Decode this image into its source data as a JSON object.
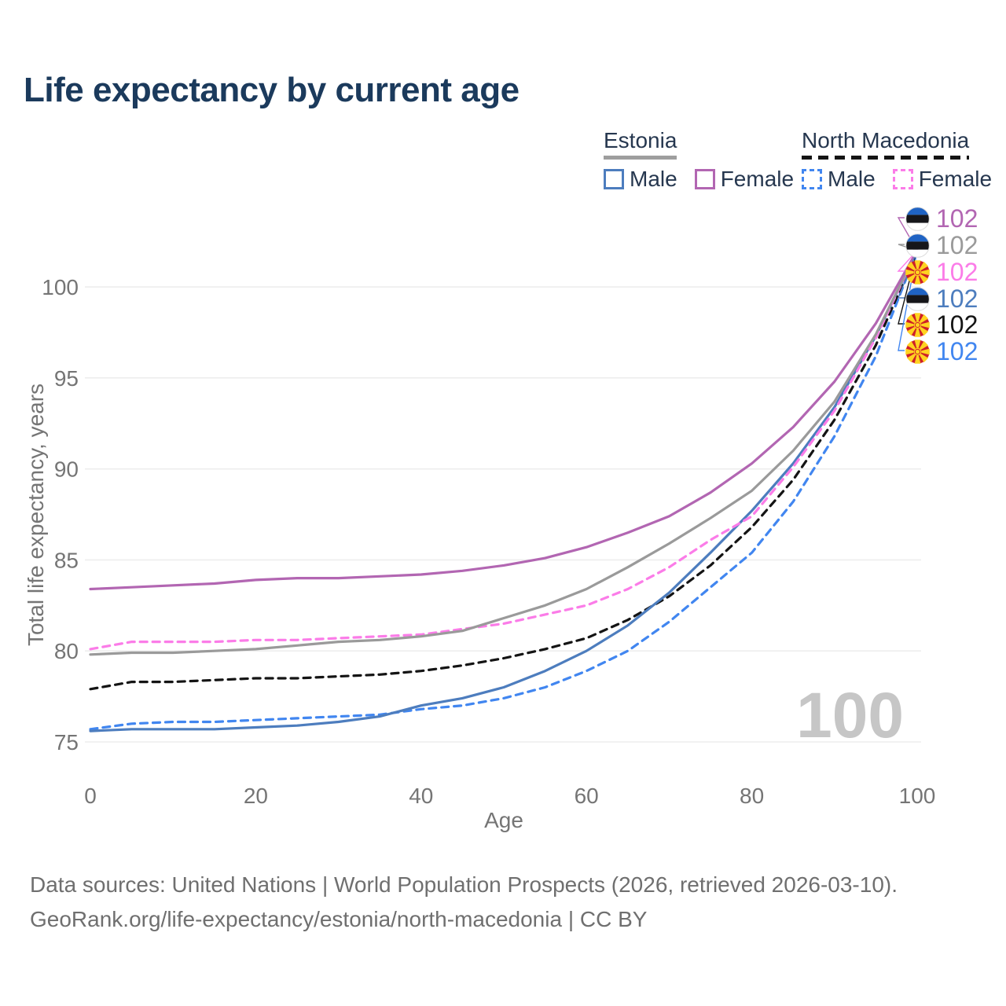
{
  "title": "Life expectancy by current age",
  "watermark": "100",
  "legend": {
    "groups": [
      {
        "label": "Estonia",
        "line_style": "solid",
        "underline_color": "#9e9e9e",
        "items": [
          {
            "label": "Male",
            "color": "#4d7dbe",
            "dash": false
          },
          {
            "label": "Female",
            "color": "#b266b2",
            "dash": false
          }
        ]
      },
      {
        "label": "North Macedonia",
        "line_style": "dashed",
        "underline_color": "#141414",
        "items": [
          {
            "label": "Male",
            "color": "#4186f0",
            "dash": true
          },
          {
            "label": "Female",
            "color": "#fb7ce8",
            "dash": true
          }
        ]
      }
    ]
  },
  "footer": {
    "line1": "Data sources: United Nations | World Population Prospects (2026, retrieved 2026-03-10).",
    "line2": "GeoRank.org/life-expectancy/estonia/north-macedonia | CC BY"
  },
  "chart_data": {
    "type": "line",
    "title": "Life expectancy by current age",
    "xlabel": "Age",
    "ylabel": "Total life expectancy, years",
    "xlim": [
      0,
      100
    ],
    "ylim": [
      74.5,
      103
    ],
    "x_ticks": [
      0,
      20,
      40,
      60,
      80,
      100
    ],
    "y_ticks": [
      75,
      80,
      85,
      90,
      95,
      100
    ],
    "grid": "horizontal",
    "legend_position": "top-right",
    "x": [
      0,
      5,
      10,
      15,
      20,
      25,
      30,
      35,
      40,
      45,
      50,
      55,
      60,
      65,
      70,
      75,
      80,
      85,
      90,
      95,
      100
    ],
    "series": [
      {
        "name": "Estonia — Female",
        "country": "Estonia",
        "sex": "Female",
        "color": "#b266b2",
        "dash": false,
        "flag": "estonia",
        "end_label": "102",
        "values": [
          83.4,
          83.5,
          83.6,
          83.7,
          83.9,
          84.0,
          84.0,
          84.1,
          84.2,
          84.4,
          84.7,
          85.1,
          85.7,
          86.5,
          87.4,
          88.7,
          90.3,
          92.3,
          94.8,
          98.0,
          102
        ]
      },
      {
        "name": "Estonia — All",
        "country": "Estonia",
        "sex": "All",
        "color": "#9a9a9a",
        "dash": false,
        "flag": "estonia",
        "end_label": "102",
        "values": [
          79.8,
          79.9,
          79.9,
          80.0,
          80.1,
          80.3,
          80.5,
          80.6,
          80.8,
          81.1,
          81.8,
          82.5,
          83.4,
          84.6,
          85.9,
          87.3,
          88.8,
          91.0,
          93.7,
          97.4,
          102
        ]
      },
      {
        "name": "North Macedonia — Female",
        "country": "North Macedonia",
        "sex": "Female",
        "color": "#fb7ce8",
        "dash": true,
        "flag": "north-macedonia",
        "end_label": "102",
        "values": [
          80.1,
          80.5,
          80.5,
          80.5,
          80.6,
          80.6,
          80.7,
          80.8,
          80.9,
          81.2,
          81.5,
          82.0,
          82.5,
          83.4,
          84.6,
          86.1,
          87.4,
          90.1,
          93.2,
          97.2,
          102
        ]
      },
      {
        "name": "Estonia — Male",
        "country": "Estonia",
        "sex": "Male",
        "color": "#4d7dbe",
        "dash": false,
        "flag": "estonia",
        "end_label": "102",
        "values": [
          75.6,
          75.7,
          75.7,
          75.7,
          75.8,
          75.9,
          76.1,
          76.4,
          77.0,
          77.4,
          78.0,
          78.9,
          80.0,
          81.4,
          83.2,
          85.4,
          87.7,
          90.3,
          93.4,
          97.3,
          102
        ]
      },
      {
        "name": "North Macedonia — All",
        "country": "North Macedonia",
        "sex": "All",
        "color": "#141414",
        "dash": true,
        "flag": "north-macedonia",
        "end_label": "102",
        "values": [
          77.9,
          78.3,
          78.3,
          78.4,
          78.5,
          78.5,
          78.6,
          78.7,
          78.9,
          79.2,
          79.6,
          80.1,
          80.7,
          81.7,
          83.0,
          84.7,
          86.8,
          89.4,
          92.7,
          96.8,
          102
        ]
      },
      {
        "name": "North Macedonia — Male",
        "country": "North Macedonia",
        "sex": "Male",
        "color": "#4186f0",
        "dash": true,
        "flag": "north-macedonia",
        "end_label": "102",
        "values": [
          75.7,
          76.0,
          76.1,
          76.1,
          76.2,
          76.3,
          76.4,
          76.5,
          76.8,
          77.0,
          77.4,
          78.0,
          78.9,
          80.0,
          81.6,
          83.5,
          85.4,
          88.2,
          91.8,
          96.2,
          102
        ]
      }
    ]
  }
}
